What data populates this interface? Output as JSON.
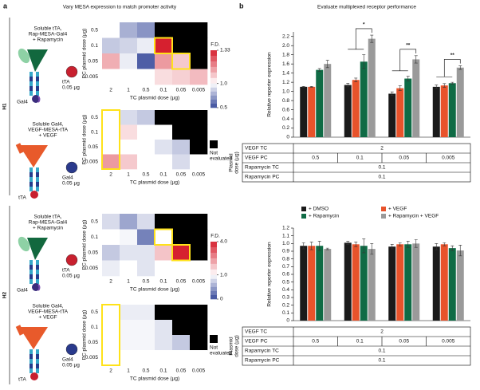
{
  "figure": {
    "panel_a": {
      "label": "a",
      "title": "Vary MESA expression to match promoter activity",
      "groups": [
        {
          "label": "H1",
          "diagrams": [
            {
              "lines": [
                "Soluble tTA,",
                "Rap-MESA-Gal4",
                "+ Rapamycin"
              ],
              "free": "tTA",
              "dose": "0.05 µg",
              "bound": "Gal4"
            },
            {
              "lines": [
                "Soluble Gal4,",
                "VEGF-MESA-tTA",
                "+ VEGF"
              ],
              "free": "Gal4",
              "dose": "0.05 µg",
              "bound": "tTA"
            }
          ]
        },
        {
          "label": "H2",
          "diagrams": [
            {
              "lines": [
                "Soluble tTA,",
                "Rap-MESA-Gal4",
                "+ Rapamycin"
              ],
              "free": "tTA",
              "dose": "0.05 µg",
              "bound": "Gal4"
            },
            {
              "lines": [
                "Soluble Gal4,",
                "VEGF-MESA-tTA",
                "+ VEGF"
              ],
              "free": "Gal4",
              "dose": "0.05 µg",
              "bound": "tTA"
            }
          ]
        }
      ]
    },
    "panel_b": {
      "label": "b",
      "title": "Evaluate multiplexed receptor performance"
    }
  },
  "chart_data": [
    {
      "type": "heatmap",
      "y_label": "PC plasmid dose (µg)",
      "x_label": "TC plasmid dose (µg)",
      "y_categories": [
        "0.5",
        "0.1",
        "0.05",
        "0.005"
      ],
      "x_categories": [
        "2",
        "1",
        "0.5",
        "0.1",
        "0.05",
        "0.005"
      ],
      "values": [
        [
          1.0,
          0.78,
          0.7,
          null,
          null,
          null
        ],
        [
          0.85,
          0.88,
          0.95,
          1.33,
          null,
          null
        ],
        [
          1.12,
          0.95,
          0.55,
          1.15,
          1.08,
          null
        ],
        [
          1.0,
          1.0,
          1.0,
          1.05,
          1.07,
          1.1
        ]
      ],
      "clim": [
        0.5,
        1.33
      ],
      "cmid": 1,
      "colors": [
        "#3a4c9c",
        "#ffffff",
        "#d6202f"
      ],
      "highlight": [
        [
          1,
          3,
          1,
          3
        ],
        [
          2,
          4,
          2,
          4
        ]
      ],
      "colorbar": {
        "title": "F.D.",
        "ticks": [
          1.33,
          {
            "value": 1,
            "label": "1.0"
          },
          0.5
        ]
      }
    },
    {
      "type": "heatmap",
      "y_label": "PC plasmid dose (µg)",
      "x_label": "TC plasmid dose (µg)",
      "y_categories": [
        "0.5",
        "0.1",
        "0.05",
        "0.005"
      ],
      "x_categories": [
        "2",
        "1",
        "0.5",
        "0.1",
        "0.05",
        "0.005"
      ],
      "values": [
        [
          1.0,
          0.9,
          0.85,
          null,
          null,
          null
        ],
        [
          1.0,
          1.05,
          1.0,
          1.0,
          null,
          null
        ],
        [
          1.0,
          1.0,
          1.0,
          0.92,
          0.85,
          null
        ],
        [
          1.15,
          1.08,
          1.0,
          1.0,
          0.9,
          1.0
        ]
      ],
      "clim": [
        0.5,
        1.33
      ],
      "cmid": 1,
      "colors": [
        "#3a4c9c",
        "#ffffff",
        "#d6202f"
      ],
      "highlight": [
        [
          0,
          0,
          3,
          0
        ]
      ],
      "missing_label": [
        "Not",
        "evaluated"
      ]
    },
    {
      "type": "heatmap",
      "y_label": "PC plasmid dose (µg)",
      "x_label": "TC plasmid dose (µg)",
      "y_categories": [
        "0.5",
        "0.1",
        "0.05",
        "0.005"
      ],
      "x_categories": [
        "2",
        "1",
        "0.5",
        "0.1",
        "0.05",
        "0.005"
      ],
      "values": [
        [
          0.8,
          0.5,
          0.8,
          null,
          null,
          null
        ],
        [
          1.0,
          0.95,
          0.3,
          1.0,
          null,
          null
        ],
        [
          0.7,
          0.85,
          0.85,
          1.8,
          4.0,
          null
        ],
        [
          0.9,
          1.0,
          0.85,
          1.0,
          1.0,
          1.0
        ]
      ],
      "clim": [
        0,
        4
      ],
      "cmid": 1,
      "colors": [
        "#3a4c9c",
        "#ffffff",
        "#d6202f"
      ],
      "highlight": [
        [
          1,
          3,
          1,
          3
        ],
        [
          2,
          4,
          2,
          4
        ]
      ],
      "colorbar": {
        "title": "F.D.",
        "ticks": [
          {
            "value": 4,
            "label": "4.0"
          },
          {
            "value": 1,
            "label": "1.0"
          },
          0
        ]
      }
    },
    {
      "type": "heatmap",
      "y_label": "PC plasmid dose (µg)",
      "x_label": "TC plasmid dose (µg)",
      "y_categories": [
        "0.5",
        "0.1",
        "0.05",
        "0.005"
      ],
      "x_categories": [
        "2",
        "1",
        "0.5",
        "0.1",
        "0.05",
        "0.005"
      ],
      "values": [
        [
          1.0,
          0.9,
          0.9,
          null,
          null,
          null
        ],
        [
          1.0,
          0.95,
          0.95,
          0.85,
          null,
          null
        ],
        [
          1.0,
          0.95,
          0.95,
          0.85,
          0.7,
          null
        ],
        [
          1.0,
          1.0,
          1.0,
          1.0,
          1.0,
          1.0
        ]
      ],
      "clim": [
        0,
        4
      ],
      "cmid": 1,
      "colors": [
        "#3a4c9c",
        "#ffffff",
        "#d6202f"
      ],
      "highlight": [
        [
          0,
          0,
          3,
          0
        ]
      ],
      "missing_label": [
        "Not",
        "evaluated"
      ]
    },
    {
      "type": "bar",
      "y_label": "Relative reporter expression",
      "categories": [
        "0.5",
        "0.1",
        "0.05",
        "0.005"
      ],
      "series": [
        {
          "color": "#1a1a1a",
          "values": [
            1.1,
            1.14,
            0.95,
            1.1
          ],
          "errors": [
            0.01,
            0.04,
            0.04,
            0.04
          ]
        },
        {
          "color": "#e8532b",
          "values": [
            1.1,
            1.25,
            1.07,
            1.13
          ],
          "errors": [
            0.01,
            0.04,
            0.05,
            0.04
          ]
        },
        {
          "color": "#0f6b45",
          "values": [
            1.47,
            1.65,
            1.28,
            1.18
          ],
          "errors": [
            0.03,
            0.15,
            0.05,
            0.02
          ]
        },
        {
          "color": "#9a9a9a",
          "values": [
            1.6,
            2.15,
            1.7,
            1.52
          ],
          "errors": [
            0.08,
            0.08,
            0.08,
            0.04
          ]
        }
      ],
      "ylim": [
        0,
        2.3
      ],
      "yticks": [
        0,
        0.2,
        0.4,
        0.6,
        0.8,
        {
          "value": 1,
          "label": "1.0"
        },
        1.2,
        1.4,
        1.6,
        1.8,
        {
          "value": 2,
          "label": "2.0"
        },
        2.2
      ],
      "significance": [
        null,
        "*",
        "**",
        "**"
      ],
      "table": {
        "side_label": [
          "Plasmid",
          "dose (µg)"
        ],
        "rows": [
          {
            "label": "VEGF TC",
            "value": "2"
          },
          {
            "label": "VEGF PC"
          },
          {
            "label": "Rapamycin TC",
            "value": "0.1"
          },
          {
            "label": "Rapamycin PC",
            "value": "0.1"
          }
        ]
      }
    },
    {
      "type": "bar",
      "y_label": "Relative reporter expression",
      "categories": [
        "0.5",
        "0.1",
        "0.05",
        "0.005"
      ],
      "series": [
        {
          "name": "+ DMSO",
          "color": "#1a1a1a",
          "values": [
            0.97,
            1.01,
            0.96,
            0.96
          ],
          "errors": [
            0.04,
            0.02,
            0.03,
            0.04
          ]
        },
        {
          "name": "+ VEGF",
          "color": "#e8532b",
          "values": [
            0.97,
            0.99,
            0.99,
            0.99
          ],
          "errors": [
            0.05,
            0.03,
            0.02,
            0.02
          ]
        },
        {
          "name": "+ Rapamycin",
          "color": "#0f6b45",
          "values": [
            0.97,
            0.97,
            0.99,
            0.94
          ],
          "errors": [
            0.06,
            0.09,
            0.04,
            0.03
          ]
        },
        {
          "name": "+ Rapamycin + VEGF",
          "color": "#9a9a9a",
          "values": [
            0.93,
            0.93,
            1.0,
            0.91
          ],
          "errors": [
            0.01,
            0.07,
            0.05,
            0.07
          ]
        }
      ],
      "ylim": [
        0,
        1.2
      ],
      "yticks": [
        0,
        0.1,
        0.2,
        0.3,
        0.4,
        0.5,
        0.6,
        0.7,
        0.8,
        0.9,
        {
          "value": 1,
          "label": "1.0"
        },
        1.1,
        1.2
      ],
      "significance": [
        null,
        null,
        null,
        null
      ],
      "table": {
        "side_label": [
          "Plasmid",
          "dose (µg)"
        ],
        "rows": [
          {
            "label": "VEGF TC",
            "value": "2"
          },
          {
            "label": "VEGF PC"
          },
          {
            "label": "Rapamycin TC",
            "value": "0.1"
          },
          {
            "label": "Rapamycin PC",
            "value": "0.1"
          }
        ]
      }
    }
  ]
}
